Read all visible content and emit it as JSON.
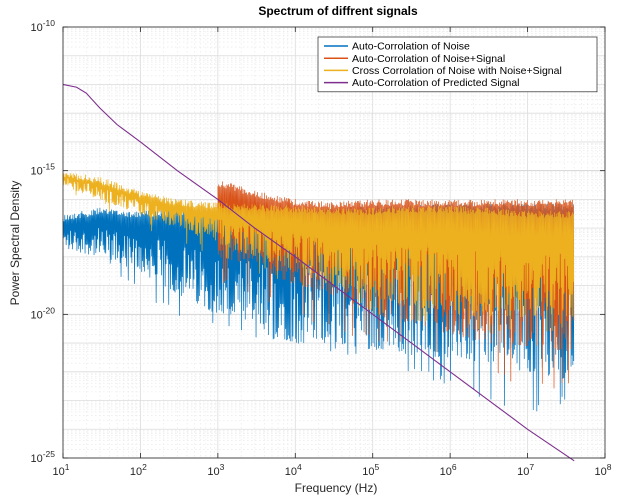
{
  "chart_data": {
    "type": "line",
    "title": "Spectrum of diffrent signals",
    "xlabel": "Frequency (Hz)",
    "ylabel": "Power Spectral Density",
    "xscale": "log",
    "yscale": "log",
    "xlim": [
      10,
      100000000
    ],
    "ylim": [
      1e-25,
      1e-10
    ],
    "grid": true,
    "legend_position": "top-right",
    "x_ticks": [
      {
        "value": 10,
        "base": "10",
        "exp": "1"
      },
      {
        "value": 100,
        "base": "10",
        "exp": "2"
      },
      {
        "value": 1000,
        "base": "10",
        "exp": "3"
      },
      {
        "value": 10000,
        "base": "10",
        "exp": "4"
      },
      {
        "value": 100000,
        "base": "10",
        "exp": "5"
      },
      {
        "value": 1000000,
        "base": "10",
        "exp": "6"
      },
      {
        "value": 10000000,
        "base": "10",
        "exp": "7"
      },
      {
        "value": 100000000,
        "base": "10",
        "exp": "8"
      }
    ],
    "y_ticks": [
      {
        "value": 1e-25,
        "base": "10",
        "exp": "-25"
      },
      {
        "value": 1e-20,
        "base": "10",
        "exp": "-20"
      },
      {
        "value": 1e-15,
        "base": "10",
        "exp": "-15"
      },
      {
        "value": 1e-10,
        "base": "10",
        "exp": "-10"
      }
    ],
    "series": [
      {
        "name": "Auto-Corrolation of Noise",
        "color": "#0072BD",
        "style": "noisy-band",
        "x": [
          10,
          30,
          100,
          300,
          1000,
          3000,
          10000,
          30000,
          100000,
          300000,
          1000000,
          3000000,
          10000000,
          40000000
        ],
        "upper": [
          3e-17,
          5e-17,
          4e-17,
          5e-17,
          4e-17,
          3e-17,
          4e-17,
          5e-17,
          6e-17,
          6e-17,
          7e-17,
          7e-17,
          7e-17,
          7e-17
        ],
        "lower": [
          2e-18,
          1e-18,
          3e-19,
          5e-20,
          1e-20,
          3e-21,
          1e-21,
          1e-21,
          6e-22,
          4e-22,
          3e-22,
          2e-22,
          1e-22,
          5e-23
        ],
        "spike": [
          1e-18,
          8e-19,
          5e-20,
          8e-21,
          3e-21,
          1e-21,
          1e-21,
          5e-22,
          2e-22,
          1e-22,
          3e-23,
          1e-23,
          3e-24,
          1e-23
        ]
      },
      {
        "name": "Auto-Corrolation of Noise+Signal",
        "color": "#D95319",
        "style": "noisy-band",
        "x": [
          1000,
          3000,
          10000,
          30000,
          100000,
          300000,
          1000000,
          3000000,
          10000000,
          40000000
        ],
        "upper": [
          5e-16,
          2e-16,
          1e-16,
          8e-17,
          1e-16,
          1e-16,
          1e-16,
          1e-16,
          1e-16,
          1e-16
        ],
        "lower": [
          1e-18,
          5e-19,
          1e-19,
          5e-20,
          1e-20,
          5e-21,
          2e-21,
          1e-21,
          8e-22,
          5e-22
        ],
        "spike": [
          1e-19,
          5e-20,
          8e-21,
          3e-21,
          1e-21,
          5e-22,
          2e-22,
          1e-22,
          2e-23,
          3e-23
        ]
      },
      {
        "name": "Cross Corrolation of Noise with Noise+Signal",
        "color": "#EDB120",
        "style": "noisy-band",
        "x": [
          10,
          30,
          100,
          300,
          1000,
          3000,
          10000,
          30000,
          100000,
          300000,
          1000000,
          3000000,
          10000000,
          40000000
        ],
        "upper": [
          1e-15,
          6e-16,
          2e-16,
          1e-16,
          8e-17,
          7e-17,
          6e-17,
          5e-17,
          5e-17,
          6e-17,
          6e-17,
          5e-17,
          4e-17,
          4e-17
        ],
        "lower": [
          3e-16,
          1e-16,
          3e-17,
          1e-17,
          3e-18,
          1e-18,
          3e-19,
          1e-19,
          4e-20,
          2e-20,
          1e-20,
          8e-21,
          8e-21,
          8e-21
        ],
        "spike": [
          2e-16,
          5e-17,
          1e-17,
          3e-18,
          1e-18,
          3e-19,
          8e-20,
          3e-20,
          1e-20,
          6e-21,
          3e-21,
          2e-21,
          2e-21,
          2e-21
        ]
      },
      {
        "name": "Auto-Corrolation of Predicted Signal",
        "color": "#7E2F8E",
        "style": "line",
        "x": [
          10,
          15,
          20,
          30,
          50,
          100,
          300,
          1000,
          3000,
          10000,
          100000,
          1000000,
          10000000,
          40000000
        ],
        "y": [
          1e-12,
          8e-13,
          5e-13,
          1.5e-13,
          4e-14,
          1e-14,
          1e-15,
          1e-16,
          1e-17,
          1e-18,
          1e-20,
          1e-22,
          1e-24,
          8e-26
        ]
      }
    ]
  }
}
